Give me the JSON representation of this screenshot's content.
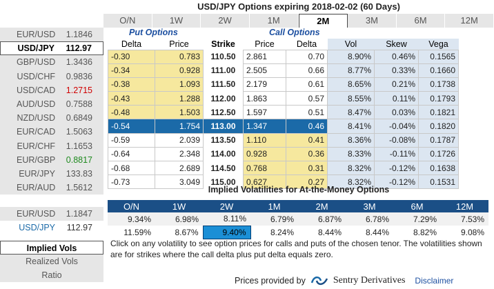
{
  "title": "USD/JPY Options expiring 2018-02-02 (60 Days)",
  "tenors": [
    "O/N",
    "1W",
    "2W",
    "1M",
    "2M",
    "3M",
    "6M",
    "12M"
  ],
  "active_tenor": "2M",
  "currencies": [
    {
      "pair": "EUR/USD",
      "price": "1.1846"
    },
    {
      "pair": "USD/JPY",
      "price": "112.97"
    },
    {
      "pair": "GBP/USD",
      "price": "1.3436"
    },
    {
      "pair": "USD/CHF",
      "price": "0.9836"
    },
    {
      "pair": "USD/CAD",
      "price": "1.2715"
    },
    {
      "pair": "AUD/USD",
      "price": "0.7588"
    },
    {
      "pair": "NZD/USD",
      "price": "0.6849"
    },
    {
      "pair": "EUR/CAD",
      "price": "1.5063"
    },
    {
      "pair": "EUR/CHF",
      "price": "1.1653"
    },
    {
      "pair": "EUR/GBP",
      "price": "0.8817"
    },
    {
      "pair": "EUR/JPY",
      "price": "133.83"
    },
    {
      "pair": "EUR/AUD",
      "price": "1.5612"
    }
  ],
  "selected_currency": "USD/JPY",
  "price_colors": {
    "red": "#d00000",
    "green": "#1f8a1f",
    "atm": "#1b6aa8",
    "put_fill": "#f6e89e"
  },
  "sections": {
    "put": "Put Options",
    "call": "Call Options"
  },
  "columns": {
    "put_delta": "Delta",
    "put_price": "Price",
    "strike": "Strike",
    "call_price": "Price",
    "call_delta": "Delta",
    "vol": "Vol",
    "skew": "Skew",
    "vega": "Vega"
  },
  "rows": [
    {
      "put_delta": "-0.30",
      "put_price": "0.783",
      "strike": "110.50",
      "call_price": "2.861",
      "call_delta": "0.70",
      "vol": "8.90%",
      "skew": "0.46%",
      "vega": "0.1565"
    },
    {
      "put_delta": "-0.34",
      "put_price": "0.928",
      "strike": "111.00",
      "call_price": "2.505",
      "call_delta": "0.66",
      "vol": "8.77%",
      "skew": "0.33%",
      "vega": "0.1660"
    },
    {
      "put_delta": "-0.38",
      "put_price": "1.093",
      "strike": "111.50",
      "call_price": "2.179",
      "call_delta": "0.61",
      "vol": "8.65%",
      "skew": "0.21%",
      "vega": "0.1738"
    },
    {
      "put_delta": "-0.43",
      "put_price": "1.288",
      "strike": "112.00",
      "call_price": "1.863",
      "call_delta": "0.57",
      "vol": "8.55%",
      "skew": "0.11%",
      "vega": "0.1793"
    },
    {
      "put_delta": "-0.48",
      "put_price": "1.503",
      "strike": "112.50",
      "call_price": "1.597",
      "call_delta": "0.51",
      "vol": "8.47%",
      "skew": "0.03%",
      "vega": "0.1821"
    },
    {
      "put_delta": "-0.54",
      "put_price": "1.754",
      "strike": "113.00",
      "call_price": "1.347",
      "call_delta": "0.46",
      "vol": "8.41%",
      "skew": "-0.04%",
      "vega": "0.1820"
    },
    {
      "put_delta": "-0.59",
      "put_price": "2.039",
      "strike": "113.50",
      "call_price": "1.110",
      "call_delta": "0.41",
      "vol": "8.36%",
      "skew": "-0.08%",
      "vega": "0.1787"
    },
    {
      "put_delta": "-0.64",
      "put_price": "2.348",
      "strike": "114.00",
      "call_price": "0.928",
      "call_delta": "0.36",
      "vol": "8.33%",
      "skew": "-0.11%",
      "vega": "0.1726"
    },
    {
      "put_delta": "-0.68",
      "put_price": "2.689",
      "strike": "114.50",
      "call_price": "0.768",
      "call_delta": "0.31",
      "vol": "8.32%",
      "skew": "-0.12%",
      "vega": "0.1638"
    },
    {
      "put_delta": "-0.73",
      "put_price": "3.049",
      "strike": "115.00",
      "call_price": "0.627",
      "call_delta": "0.27",
      "vol": "8.32%",
      "skew": "-0.12%",
      "vega": "0.1531"
    }
  ],
  "atm_title": "Implied Volatilities for At-the-Money Options",
  "atm_rows": [
    {
      "pair": "EUR/USD",
      "price": "1.1847",
      "vols": [
        "9.34%",
        "6.98%",
        "8.11%",
        "6.79%",
        "6.87%",
        "6.78%",
        "7.29%",
        "7.53%"
      ]
    },
    {
      "pair": "USD/JPY",
      "price": "112.97",
      "vols": [
        "11.59%",
        "8.67%",
        "9.40%",
        "8.24%",
        "8.44%",
        "8.44%",
        "8.82%",
        "9.08%"
      ]
    }
  ],
  "note": "Click on any volatility to see option prices for calls and puts of the chosen tenor. The volatilities shown are for strikes where the call delta plus put delta equals zero.",
  "nav": [
    "Implied Vols",
    "Realized Vols",
    "Ratio"
  ],
  "footer": {
    "prefix": "Prices provided by",
    "brand": "Sentry Derivatives",
    "disclaimer": "Disclaimer"
  }
}
